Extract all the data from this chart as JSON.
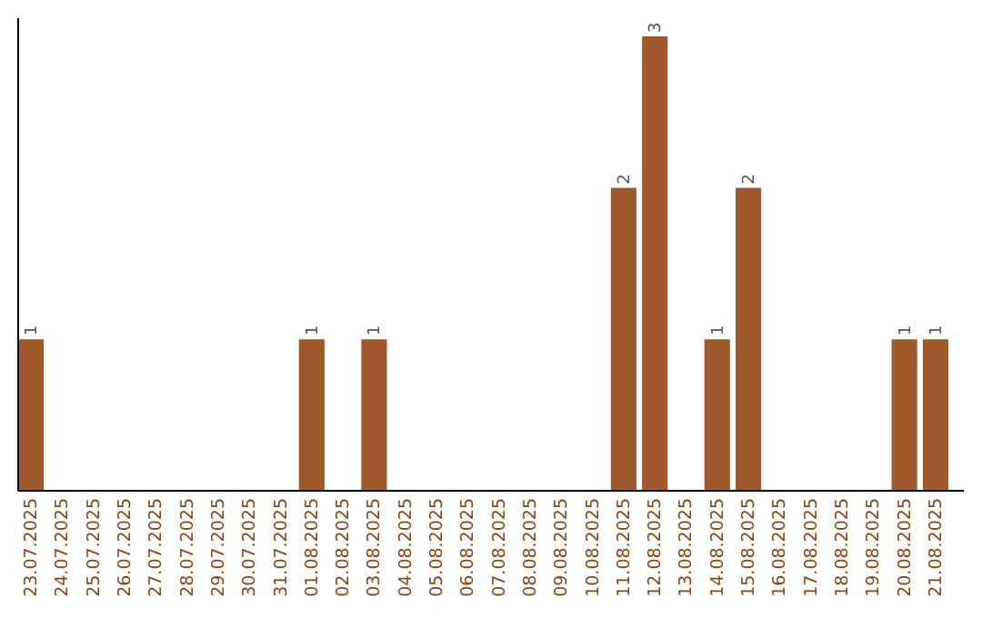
{
  "chart_data": {
    "type": "bar",
    "categories": [
      "23.07.2025",
      "24.07.2025",
      "25.07.2025",
      "26.07.2025",
      "27.07.2025",
      "28.07.2025",
      "29.07.2025",
      "30.07.2025",
      "31.07.2025",
      "01.08.2025",
      "02.08.2025",
      "03.08.2025",
      "04.08.2025",
      "05.08.2025",
      "06.08.2025",
      "07.08.2025",
      "08.08.2025",
      "09.08.2025",
      "10.08.2025",
      "11.08.2025",
      "12.08.2025",
      "13.08.2025",
      "14.08.2025",
      "15.08.2025",
      "16.08.2025",
      "17.08.2025",
      "18.08.2025",
      "19.08.2025",
      "20.08.2025",
      "21.08.2025"
    ],
    "values": [
      1,
      0,
      0,
      0,
      0,
      0,
      0,
      0,
      0,
      1,
      0,
      1,
      0,
      0,
      0,
      0,
      0,
      0,
      0,
      2,
      3,
      0,
      1,
      2,
      0,
      0,
      0,
      0,
      1,
      1
    ],
    "value_labels": [
      "1",
      null,
      null,
      null,
      null,
      null,
      null,
      null,
      null,
      "1",
      null,
      "1",
      null,
      null,
      null,
      null,
      null,
      null,
      null,
      "2",
      "3",
      null,
      "1",
      "2",
      null,
      null,
      null,
      null,
      "1",
      "1"
    ],
    "color": "#a0592b"
  }
}
